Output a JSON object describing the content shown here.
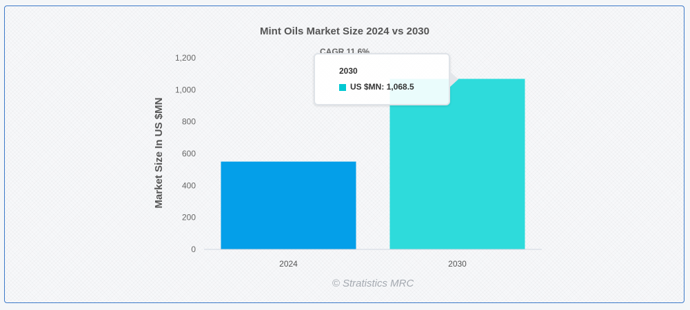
{
  "chart_data": {
    "type": "bar",
    "title": "Mint Oils Market Size 2024 vs 2030",
    "subtitle": "CAGR 11.6%",
    "ylabel": "Market Size In US $MN",
    "xlabel": "",
    "categories": [
      "2024",
      "2030"
    ],
    "series": [
      {
        "name": "US $MN",
        "values": [
          550,
          1068.5
        ]
      }
    ],
    "colors": [
      "#049fe9",
      "#2edbdb"
    ],
    "ylim": [
      0,
      1200
    ],
    "yticks": [
      0,
      200,
      400,
      600,
      800,
      1000,
      1200
    ],
    "ytick_labels": [
      "0",
      "200",
      "400",
      "600",
      "800",
      "1,000",
      "1,200"
    ],
    "grid": false,
    "credit": "© Stratistics MRC"
  },
  "tooltip": {
    "category": "2030",
    "series_label": "US $MN:",
    "value_label": "1,068.5",
    "swatch_color": "#00c8d2"
  }
}
